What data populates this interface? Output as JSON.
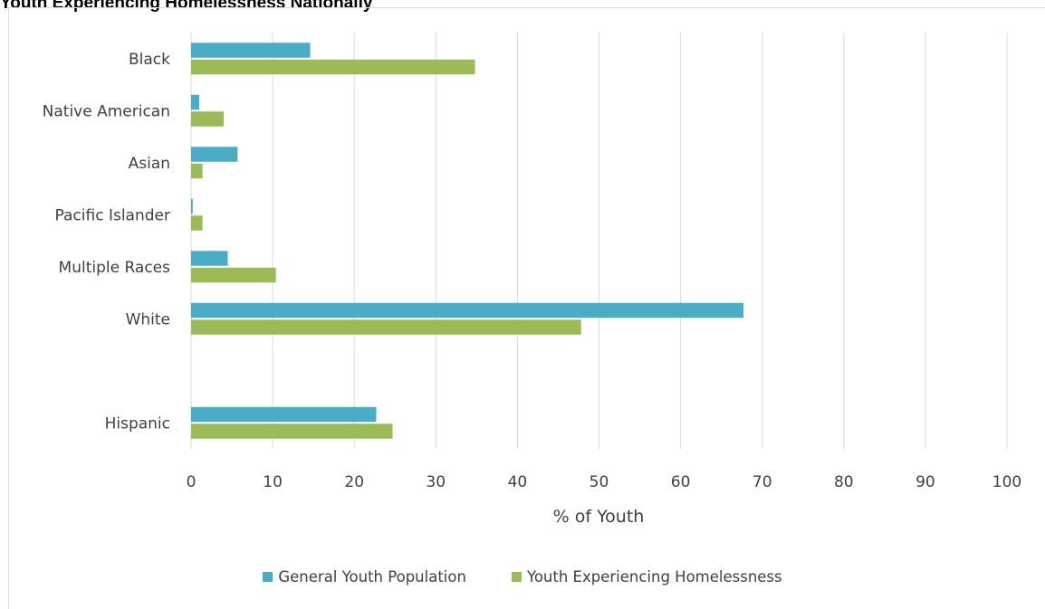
{
  "chart_data": {
    "type": "bar",
    "orientation": "horizontal",
    "title": "Youth Experiencing Homelessness Nationally",
    "xlabel": "% of Youth",
    "ylabel": "",
    "xlim": [
      0,
      100
    ],
    "xticks": [
      0,
      10,
      20,
      30,
      40,
      50,
      60,
      70,
      80,
      90,
      100
    ],
    "grid": true,
    "legend_position": "bottom",
    "categories": [
      "Black",
      "Native American",
      "Asian",
      "Pacific Islander",
      "Multiple Races",
      "White",
      "",
      "Hispanic"
    ],
    "series": [
      {
        "name": "General Youth Population",
        "color": "#4bacc6",
        "values": [
          14.6,
          1.0,
          5.7,
          0.2,
          4.5,
          67.7,
          null,
          22.7
        ]
      },
      {
        "name": "Youth Experiencing Homelessness",
        "color": "#9bbb59",
        "values": [
          34.8,
          4.0,
          1.4,
          1.4,
          10.4,
          47.8,
          null,
          24.7
        ]
      }
    ]
  }
}
